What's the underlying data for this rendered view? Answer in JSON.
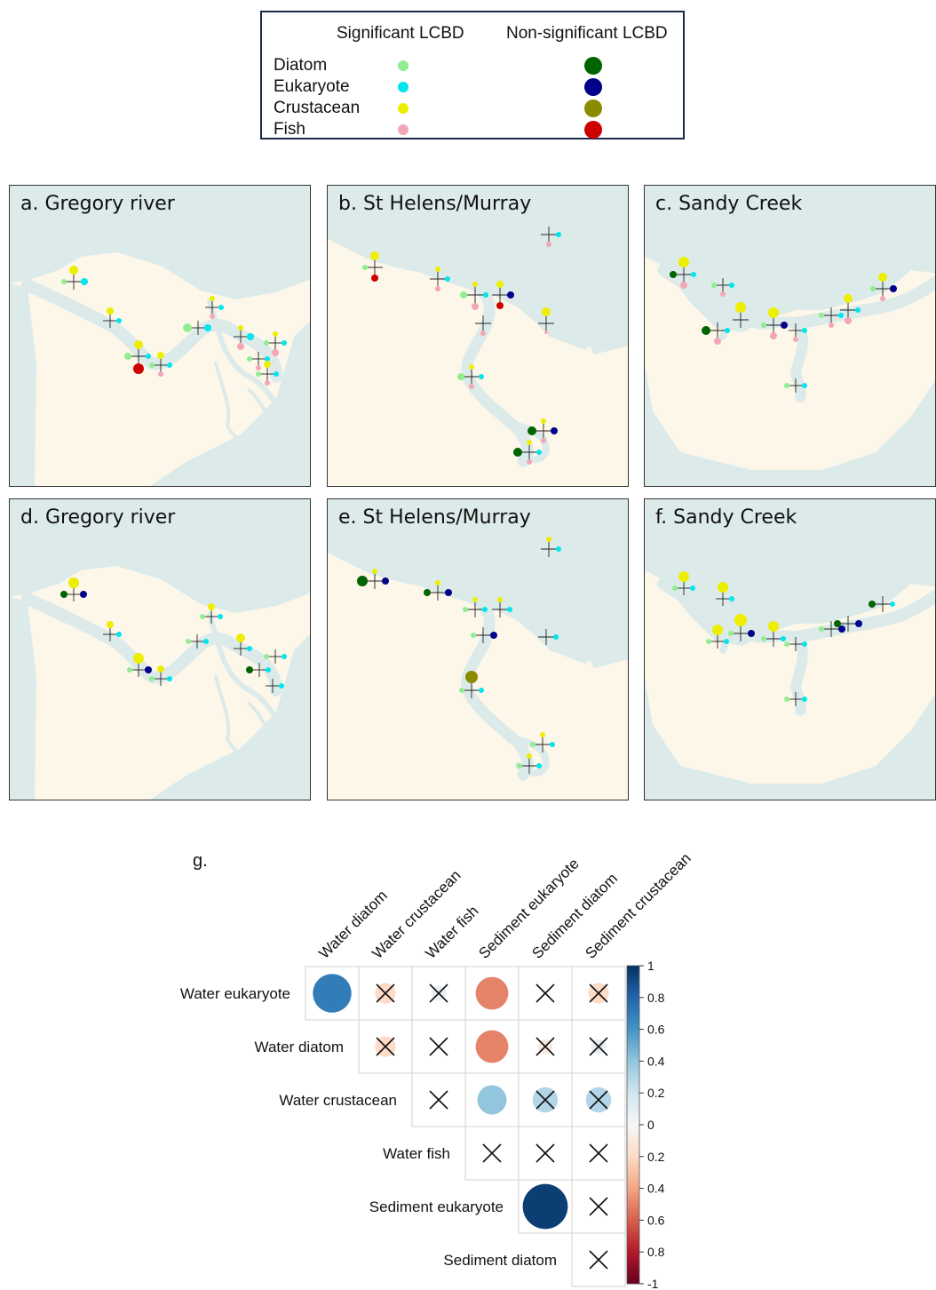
{
  "legend": {
    "sig_header": "Significant LCBD",
    "nonsig_header": "Non-significant LCBD",
    "rows": [
      {
        "label": "Diatom",
        "sig_color": "#90ee90",
        "nonsig_color": "#006400"
      },
      {
        "label": "Eukaryote",
        "sig_color": "#00e5ee",
        "nonsig_color": "#00008b"
      },
      {
        "label": "Crustacean",
        "sig_color": "#eeee00",
        "nonsig_color": "#8b8b00"
      },
      {
        "label": "Fish",
        "sig_color": "#f4a6b7",
        "nonsig_color": "#cd0000"
      }
    ]
  },
  "colors": {
    "land": "#fdf7ea",
    "water": "#dcebea"
  },
  "panels": [
    {
      "id": "a",
      "title": "a. Gregory river"
    },
    {
      "id": "b",
      "title": "b. St Helens/Murray"
    },
    {
      "id": "c",
      "title": "c. Sandy Creek"
    },
    {
      "id": "d",
      "title": "d. Gregory river"
    },
    {
      "id": "e",
      "title": "e. St Helens/Murray"
    },
    {
      "id": "f",
      "title": "f. Sandy Creek"
    }
  ],
  "corr_label": "g.",
  "chart_data": {
    "type": "heatmap",
    "rows": [
      "Water eukaryote",
      "Water diatom",
      "Water crustacean",
      "Water fish",
      "Sediment eukaryote",
      "Sediment diatom"
    ],
    "columns": [
      "Water diatom",
      "Water crustacean",
      "Water fish",
      "Sediment eukaryote",
      "Sediment diatom",
      "Sediment crustacean"
    ],
    "values": [
      [
        0.7,
        -0.2,
        0.1,
        -0.5,
        0.0,
        -0.2
      ],
      [
        null,
        -0.2,
        0.0,
        -0.5,
        -0.1,
        0.1
      ],
      [
        null,
        null,
        0.0,
        0.4,
        0.3,
        0.3
      ],
      [
        null,
        null,
        null,
        0.0,
        0.0,
        0.0
      ],
      [
        null,
        null,
        null,
        null,
        0.95,
        0.0
      ],
      [
        null,
        null,
        null,
        null,
        null,
        0.0
      ]
    ],
    "significant": [
      [
        true,
        false,
        false,
        true,
        false,
        false
      ],
      [
        null,
        false,
        false,
        true,
        false,
        false
      ],
      [
        null,
        null,
        false,
        true,
        false,
        false
      ],
      [
        null,
        null,
        null,
        false,
        false,
        false
      ],
      [
        null,
        null,
        null,
        null,
        true,
        false
      ],
      [
        null,
        null,
        null,
        null,
        null,
        false
      ]
    ],
    "colorbar": {
      "ticks": [
        "1",
        "0.8",
        "0.6",
        "0.4",
        "0.2",
        "0",
        "0.2",
        "0.4",
        "0.6",
        "0.8",
        "-1"
      ],
      "range": [
        -1,
        1
      ]
    }
  }
}
